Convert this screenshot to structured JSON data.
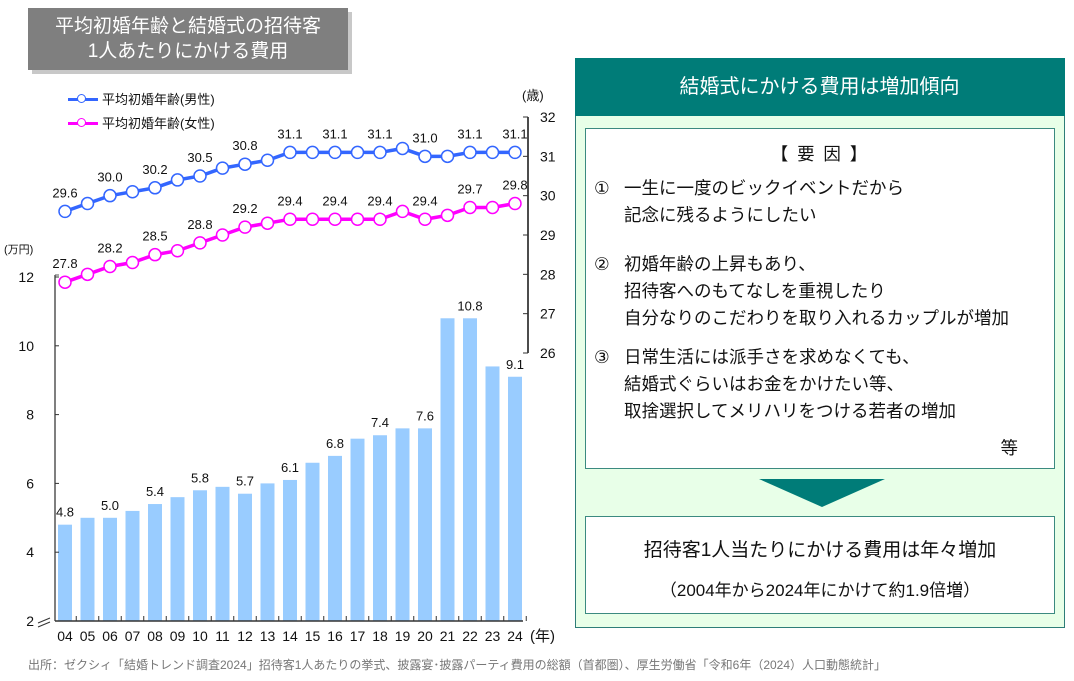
{
  "title": {
    "line1": "平均初婚年齢と結婚式の招待客",
    "line2": "1人あたりにかける費用"
  },
  "chart_data": {
    "type": "bar+line",
    "title": "平均初婚年齢と結婚式の招待客1人あたりにかける費用",
    "categories": [
      "04",
      "05",
      "06",
      "07",
      "08",
      "09",
      "10",
      "11",
      "12",
      "13",
      "14",
      "15",
      "16",
      "17",
      "18",
      "19",
      "20",
      "21",
      "22",
      "23",
      "24"
    ],
    "xlabel": "(年)",
    "left_axis": {
      "label": "(万円)",
      "ylim": [
        2,
        12
      ],
      "ticks": [
        2,
        4,
        6,
        8,
        10,
        12
      ],
      "break_at_min": true
    },
    "right_axis": {
      "label": "(歳)",
      "ylim": [
        26,
        32
      ],
      "ticks": [
        26,
        27,
        28,
        29,
        30,
        31,
        32
      ]
    },
    "bars": {
      "name": "招待客1人あたりにかける費用",
      "axis": "left",
      "color": "#99ccff",
      "values": [
        4.8,
        5.0,
        5.0,
        5.2,
        5.4,
        5.6,
        5.8,
        5.9,
        5.7,
        6.0,
        6.1,
        6.6,
        6.8,
        7.3,
        7.4,
        7.6,
        7.6,
        10.8,
        10.8,
        9.4,
        9.1
      ],
      "labels": {
        "0": "4.8",
        "2": "5.0",
        "4": "5.4",
        "6": "5.8",
        "8": "5.7",
        "10": "6.1",
        "12": "6.8",
        "14": "7.4",
        "16": "7.6",
        "18": "10.8",
        "20": "9.1"
      }
    },
    "series": [
      {
        "name": "平均初婚年齢(男性)",
        "axis": "right",
        "color": "#3366ff",
        "values": [
          29.6,
          29.8,
          30.0,
          30.1,
          30.2,
          30.4,
          30.5,
          30.7,
          30.8,
          30.9,
          31.1,
          31.1,
          31.1,
          31.1,
          31.1,
          31.2,
          31.0,
          31.0,
          31.1,
          31.1,
          31.1
        ],
        "labels": {
          "0": "29.6",
          "2": "30.0",
          "4": "30.2",
          "6": "30.5",
          "8": "30.8",
          "10": "31.1",
          "12": "31.1",
          "14": "31.1",
          "16": "31.0",
          "18": "31.1",
          "20": "31.1"
        }
      },
      {
        "name": "平均初婚年齢(女性)",
        "axis": "right",
        "color": "#ff00ff",
        "values": [
          27.8,
          28.0,
          28.2,
          28.3,
          28.5,
          28.6,
          28.8,
          29.0,
          29.2,
          29.3,
          29.4,
          29.4,
          29.4,
          29.4,
          29.4,
          29.6,
          29.4,
          29.5,
          29.7,
          29.7,
          29.8
        ],
        "labels": {
          "0": "27.8",
          "2": "28.2",
          "4": "28.5",
          "6": "28.8",
          "8": "29.2",
          "10": "29.4",
          "12": "29.4",
          "14": "29.4",
          "16": "29.4",
          "18": "29.7",
          "20": "29.8"
        }
      }
    ],
    "legend": [
      "平均初婚年齢(男性)",
      "平均初婚年齢(女性)"
    ],
    "legend_position": "top-left",
    "grid": false
  },
  "source": "出所：ゼクシィ「結婚トレンド調査2024」招待客1人あたりの挙式、披露宴･披露パーティ費用の総額（首都圏）、厚生労働省「令和6年（2024）人口動態統計」",
  "panel": {
    "header": "結婚式にかける費用は増加傾向",
    "factors_title": "【 要 因 】",
    "factors": [
      {
        "num": "①",
        "lines": [
          "一生に一度のビックイベントだから",
          "記念に残るようにしたい"
        ]
      },
      {
        "num": "②",
        "lines": [
          "初婚年齢の上昇もあり、",
          "招待客へのもてなしを重視したり",
          "自分なりのこだわりを取り入れるカップルが増加"
        ]
      },
      {
        "num": "③",
        "lines": [
          "日常生活には派手さを求めなくても、",
          "結婚式ぐらいはお金をかけたい等、",
          "取捨選択してメリハリをつける若者の増加"
        ]
      }
    ],
    "etc": "等",
    "result_line1": "招待客1人当たりにかける費用は年々増加",
    "result_line2": "（2004年から2024年にかけて約1.9倍増）"
  },
  "colors": {
    "bar": "#99ccff",
    "male": "#3366ff",
    "female": "#ff00ff",
    "panel_header": "#007c78",
    "panel_bg": "#e8ffe8",
    "title_bg": "#7f7f7f"
  }
}
